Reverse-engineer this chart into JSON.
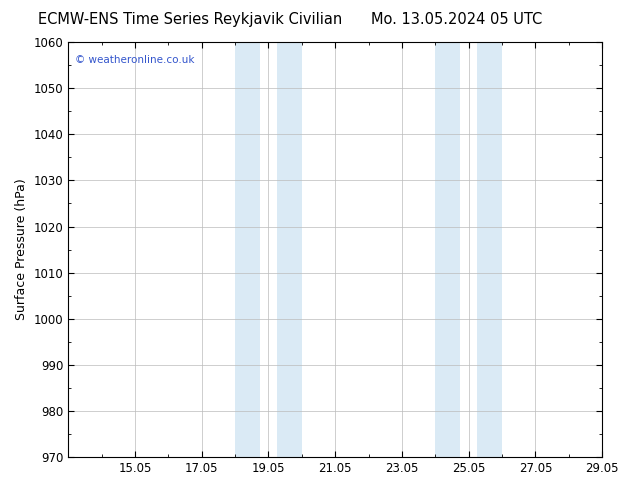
{
  "title_left": "ECMW-ENS Time Series Reykjavik Civilian",
  "title_right": "Mo. 13.05.2024 05 UTC",
  "ylabel": "Surface Pressure (hPa)",
  "ylim": [
    970,
    1060
  ],
  "yticks": [
    970,
    980,
    990,
    1000,
    1010,
    1020,
    1030,
    1040,
    1050,
    1060
  ],
  "xlim_start": 0,
  "xlim_end": 16,
  "xtick_positions": [
    2,
    4,
    6,
    8,
    10,
    12,
    14,
    16
  ],
  "xtick_labels": [
    "15.05",
    "17.05",
    "19.05",
    "21.05",
    "23.05",
    "25.05",
    "27.05",
    "29.05"
  ],
  "shaded_bands": [
    {
      "xstart": 5.0,
      "xend": 5.75,
      "color": "#daeaf5"
    },
    {
      "xstart": 6.25,
      "xend": 7.0,
      "color": "#daeaf5"
    },
    {
      "xstart": 11.0,
      "xend": 11.75,
      "color": "#daeaf5"
    },
    {
      "xstart": 12.25,
      "xend": 13.0,
      "color": "#daeaf5"
    }
  ],
  "watermark": "© weatheronline.co.uk",
  "watermark_color": "#3355cc",
  "background_color": "#ffffff",
  "plot_bg_color": "#ffffff",
  "grid_color": "#bbbbbb",
  "title_fontsize": 10.5,
  "ylabel_fontsize": 9,
  "tick_fontsize": 8.5
}
